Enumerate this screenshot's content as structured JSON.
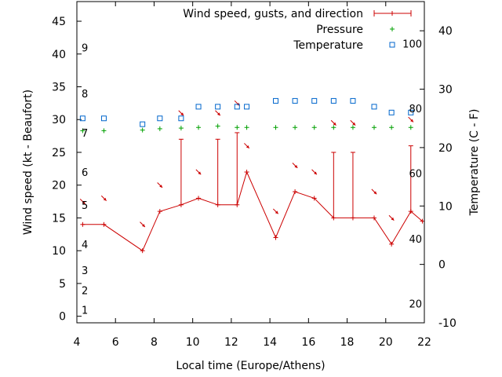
{
  "chart_data": {
    "type": "line",
    "xlabel": "Local time (Europe/Athens)",
    "ylabel": "Wind speed (kt - Beaufort)",
    "y2label": "Temperature (C - F)",
    "xlim": [
      4,
      22
    ],
    "ylim": [
      -1,
      48
    ],
    "y2lim": [
      -10,
      45
    ],
    "xticks": [
      4,
      6,
      8,
      10,
      12,
      14,
      16,
      18,
      20,
      22
    ],
    "yticks": [
      0,
      5,
      10,
      15,
      20,
      25,
      30,
      35,
      40,
      45
    ],
    "y2ticks": [
      -10,
      0,
      10,
      20,
      30,
      40
    ],
    "beaufort_labels": [
      {
        "label": "1",
        "kt": 1
      },
      {
        "label": "2",
        "kt": 4
      },
      {
        "label": "3",
        "kt": 7
      },
      {
        "label": "4",
        "kt": 11
      },
      {
        "label": "5",
        "kt": 17
      },
      {
        "label": "6",
        "kt": 22
      },
      {
        "label": "7",
        "kt": 28
      },
      {
        "label": "8",
        "kt": 34
      },
      {
        "label": "9",
        "kt": 41
      }
    ],
    "fahrenheit_labels": [
      {
        "label": "20",
        "c": -6.7
      },
      {
        "label": "40",
        "c": 4.4
      },
      {
        "label": "60",
        "c": 15.6
      },
      {
        "label": "80",
        "c": 26.7
      },
      {
        "label": "100",
        "c": 37.8
      }
    ],
    "legend": {
      "wind": "Wind speed, gusts, and direction",
      "pressure": "Pressure",
      "temperature": "Temperature"
    },
    "legend_position": "top-right",
    "colors": {
      "wind": "#cc0000",
      "pressure": "#00a000",
      "temperature": "#0066cc",
      "axes": "#000000"
    },
    "wind": {
      "x": [
        4.3,
        5.4,
        7.4,
        8.3,
        9.4,
        10.3,
        11.3,
        12.3,
        12.8,
        14.3,
        15.3,
        16.3,
        17.3,
        18.3,
        19.4,
        20.3,
        21.3,
        21.9
      ],
      "speed": [
        14,
        14,
        10,
        16,
        17,
        18,
        17,
        17,
        22,
        12,
        19,
        18,
        15,
        15,
        15,
        11,
        16,
        14.5
      ],
      "gust": [
        14,
        14,
        10,
        16,
        27,
        18,
        27,
        28,
        22,
        12,
        19,
        18,
        25,
        25,
        15,
        11,
        26,
        14.5
      ]
    },
    "direction_arrows": [
      {
        "x": 4.3,
        "y": 17.5,
        "dir": 315
      },
      {
        "x": 5.4,
        "y": 18.0,
        "dir": 315
      },
      {
        "x": 7.4,
        "y": 14.0,
        "dir": 315
      },
      {
        "x": 8.3,
        "y": 20.0,
        "dir": 315
      },
      {
        "x": 9.4,
        "y": 31.0,
        "dir": 315
      },
      {
        "x": 10.3,
        "y": 22.0,
        "dir": 315
      },
      {
        "x": 11.3,
        "y": 31.0,
        "dir": 315
      },
      {
        "x": 12.3,
        "y": 32.5,
        "dir": 315
      },
      {
        "x": 12.8,
        "y": 26.0,
        "dir": 315
      },
      {
        "x": 14.3,
        "y": 16.0,
        "dir": 315
      },
      {
        "x": 15.3,
        "y": 23.0,
        "dir": 315
      },
      {
        "x": 16.3,
        "y": 22.0,
        "dir": 315
      },
      {
        "x": 17.3,
        "y": 29.5,
        "dir": 315
      },
      {
        "x": 18.3,
        "y": 29.5,
        "dir": 315
      },
      {
        "x": 19.4,
        "y": 19.0,
        "dir": 315
      },
      {
        "x": 20.3,
        "y": 15.0,
        "dir": 315
      },
      {
        "x": 21.3,
        "y": 30.0,
        "dir": 315
      }
    ],
    "pressure": {
      "x": [
        4.3,
        5.4,
        7.4,
        8.3,
        9.4,
        10.3,
        11.3,
        12.3,
        12.8,
        14.3,
        15.3,
        16.3,
        17.3,
        18.3,
        19.4,
        20.3,
        21.3
      ],
      "y": [
        28.3,
        28.3,
        28.4,
        28.6,
        28.7,
        28.8,
        29.0,
        28.8,
        28.8,
        28.8,
        28.8,
        28.8,
        28.8,
        28.8,
        28.8,
        28.8,
        28.8
      ]
    },
    "temperature": {
      "x": [
        4.3,
        5.4,
        7.4,
        8.3,
        9.4,
        10.3,
        11.3,
        12.3,
        12.8,
        14.3,
        15.3,
        16.3,
        17.3,
        18.3,
        19.4,
        20.3,
        21.3
      ],
      "c": [
        25,
        25,
        24,
        25,
        25,
        27,
        27,
        27,
        27,
        28,
        28,
        28,
        28,
        28,
        27,
        26,
        26
      ]
    }
  }
}
